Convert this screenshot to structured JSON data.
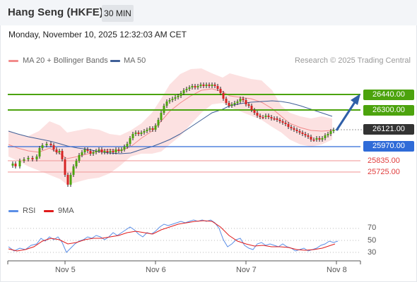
{
  "header": {
    "title": "Hang Seng (HKFE)",
    "interval": "30 MIN"
  },
  "timestamp": "Monday, November 10, 2025 12:32:03 AM CET",
  "legend": {
    "ma20_label": "MA 20 + Bollinger Bands",
    "ma50_label": "MA 50",
    "ma20_color": "#f28b8b",
    "ma50_color": "#3f5f97",
    "copyright": "Research © 2025 Trading Central"
  },
  "levels": {
    "resistance_2": "26440.00",
    "resistance_1": "26300.00",
    "last_price": "26121.00",
    "pivot": "25970.00",
    "support_1": "25835.00",
    "support_2": "25725.00",
    "resistance_color": "#4ca30d",
    "pivot_color": "#2f6bd8",
    "support_color": "#e03c3c",
    "last_color": "#333333"
  },
  "rsi_panel": {
    "rsi_label": "RSI",
    "ma9_label": "9MA",
    "rsi_color": "#5b8ee6",
    "ma9_color": "#e01b1b",
    "ticks": [
      "70",
      "50",
      "30"
    ]
  },
  "x_axis": {
    "dates": [
      "Nov 5",
      "Nov 6",
      "Nov 7",
      "Nov 8"
    ]
  }
}
